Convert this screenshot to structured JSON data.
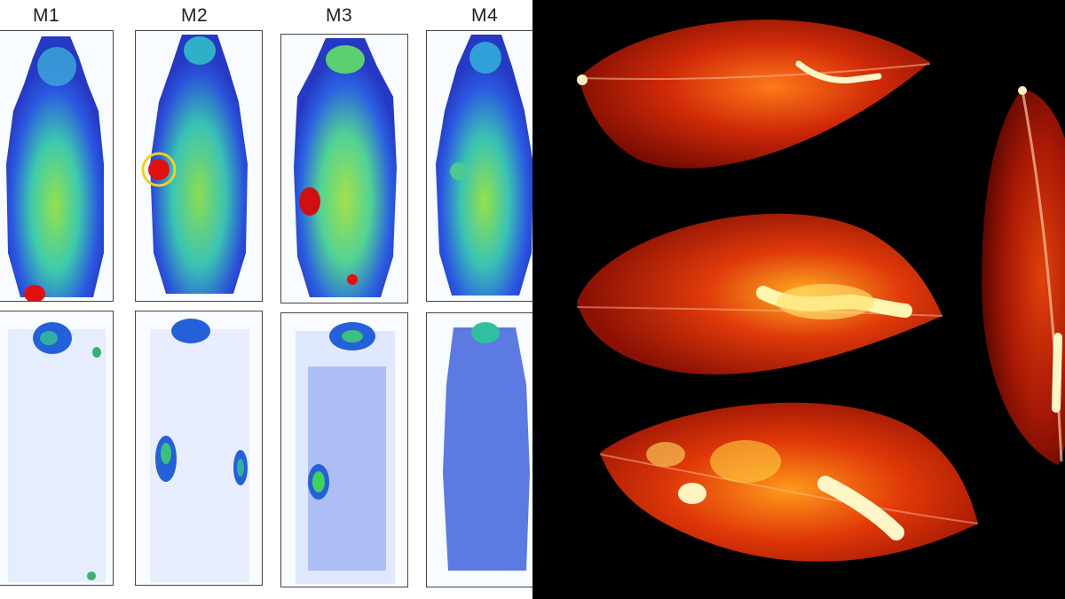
{
  "left_panel": {
    "mouse_labels": [
      "M1",
      "M2",
      "M3",
      "M4"
    ],
    "colors": {
      "background": "#ffffff",
      "scale_low": "#1f3fd8",
      "scale_mid": "#2fc0c0",
      "scale_high": "#7fe040",
      "hotspot": "#e01010"
    }
  },
  "right_panel": {
    "colors": {
      "background": "#000000",
      "leaf_base": "#b81a05",
      "leaf_glow": "#ff6a10",
      "vein_highlight": "#fff6c8"
    }
  }
}
